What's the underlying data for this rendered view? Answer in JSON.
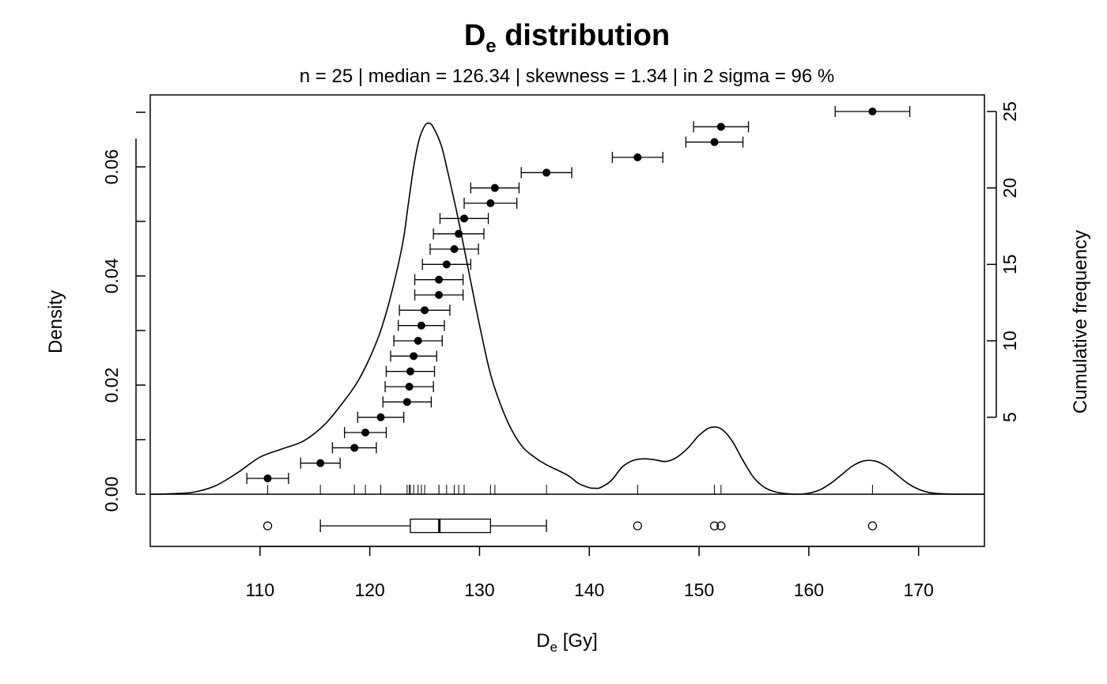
{
  "chart_data": {
    "type": "density-cumulative-boxplot",
    "title_main": "D",
    "title_sub": "e",
    "title_rest": " distribution",
    "subtitle": "n = 25 | median = 126.34 | skewness = 1.34 | in 2 sigma = 96 %",
    "xlabel_main": "D",
    "xlabel_sub": "e",
    "xlabel_rest": " [Gy]",
    "ylabel_left": "Density",
    "ylabel_right": "Cumulative frequency",
    "xlim": [
      100,
      176
    ],
    "ylim_density": [
      0,
      0.07
    ],
    "ylim_cumulative": [
      0,
      25
    ],
    "x_ticks": [
      110,
      120,
      130,
      140,
      150,
      160,
      170
    ],
    "y_left_ticks": [
      "0.00",
      "0.02",
      "0.04",
      "0.06"
    ],
    "y_right_ticks": [
      5,
      10,
      15,
      20,
      25
    ],
    "points": [
      {
        "x": 110.7,
        "err": 1.9
      },
      {
        "x": 115.5,
        "err": 1.8
      },
      {
        "x": 118.6,
        "err": 2.0
      },
      {
        "x": 119.6,
        "err": 1.9
      },
      {
        "x": 121.0,
        "err": 2.1
      },
      {
        "x": 123.4,
        "err": 2.2
      },
      {
        "x": 123.6,
        "err": 2.2
      },
      {
        "x": 123.7,
        "err": 2.2
      },
      {
        "x": 124.0,
        "err": 2.1
      },
      {
        "x": 124.4,
        "err": 2.2
      },
      {
        "x": 124.7,
        "err": 2.1
      },
      {
        "x": 125.0,
        "err": 2.3
      },
      {
        "x": 126.3,
        "err": 2.2
      },
      {
        "x": 126.3,
        "err": 2.2
      },
      {
        "x": 127.0,
        "err": 2.2
      },
      {
        "x": 127.7,
        "err": 2.2
      },
      {
        "x": 128.1,
        "err": 2.3
      },
      {
        "x": 128.6,
        "err": 2.2
      },
      {
        "x": 131.0,
        "err": 2.4
      },
      {
        "x": 131.4,
        "err": 2.2
      },
      {
        "x": 136.1,
        "err": 2.3
      },
      {
        "x": 144.4,
        "err": 2.3
      },
      {
        "x": 151.4,
        "err": 2.6
      },
      {
        "x": 152.0,
        "err": 2.5
      },
      {
        "x": 165.8,
        "err": 3.4
      }
    ],
    "density_curve": [
      [
        100,
        0.0
      ],
      [
        102,
        0.0001
      ],
      [
        104,
        0.0004
      ],
      [
        106,
        0.0016
      ],
      [
        108,
        0.004
      ],
      [
        110,
        0.0068
      ],
      [
        112,
        0.0083
      ],
      [
        114,
        0.0098
      ],
      [
        116,
        0.013
      ],
      [
        118,
        0.018
      ],
      [
        119,
        0.021
      ],
      [
        120,
        0.025
      ],
      [
        121,
        0.03
      ],
      [
        122,
        0.037
      ],
      [
        123,
        0.046
      ],
      [
        123.5,
        0.053
      ],
      [
        124,
        0.06
      ],
      [
        124.5,
        0.065
      ],
      [
        125,
        0.0675
      ],
      [
        125.4,
        0.068
      ],
      [
        125.8,
        0.0672
      ],
      [
        126.5,
        0.064
      ],
      [
        127,
        0.06
      ],
      [
        128,
        0.051
      ],
      [
        129,
        0.041
      ],
      [
        130,
        0.031
      ],
      [
        131,
        0.022
      ],
      [
        132,
        0.016
      ],
      [
        133,
        0.0115
      ],
      [
        134,
        0.0085
      ],
      [
        135,
        0.0068
      ],
      [
        136,
        0.0055
      ],
      [
        138,
        0.0035
      ],
      [
        139,
        0.002
      ],
      [
        140,
        0.0012
      ],
      [
        140.5,
        0.0011
      ],
      [
        141,
        0.0012
      ],
      [
        142,
        0.0025
      ],
      [
        143,
        0.005
      ],
      [
        144,
        0.0062
      ],
      [
        145,
        0.0065
      ],
      [
        146,
        0.0063
      ],
      [
        147,
        0.006
      ],
      [
        148,
        0.0068
      ],
      [
        149,
        0.0085
      ],
      [
        150,
        0.0108
      ],
      [
        151,
        0.0122
      ],
      [
        152,
        0.012
      ],
      [
        153,
        0.0098
      ],
      [
        154,
        0.0062
      ],
      [
        155,
        0.003
      ],
      [
        156,
        0.0012
      ],
      [
        157,
        0.0004
      ],
      [
        158,
        0.0001
      ],
      [
        159,
        0.0
      ],
      [
        160,
        0.0002
      ],
      [
        161,
        0.0008
      ],
      [
        162,
        0.002
      ],
      [
        163,
        0.0036
      ],
      [
        164,
        0.0052
      ],
      [
        165,
        0.0061
      ],
      [
        166,
        0.0061
      ],
      [
        167,
        0.0052
      ],
      [
        168,
        0.0036
      ],
      [
        169,
        0.002
      ],
      [
        170,
        0.0009
      ],
      [
        171,
        0.0003
      ],
      [
        172,
        0.0001
      ],
      [
        174,
        0.0
      ],
      [
        176,
        0.0
      ]
    ],
    "rug": [
      110.7,
      115.5,
      118.6,
      119.6,
      121.0,
      123.4,
      123.6,
      123.7,
      124.0,
      124.4,
      124.7,
      125.0,
      126.3,
      126.3,
      127.0,
      127.7,
      128.1,
      128.6,
      131.0,
      131.4,
      136.1,
      144.4,
      151.4,
      152.0,
      165.8
    ],
    "boxplot": {
      "whisker_low": 115.5,
      "q1": 123.7,
      "median": 126.34,
      "q3": 131.0,
      "whisker_high": 136.1,
      "outliers": [
        110.7,
        144.4,
        151.4,
        152.0,
        165.8
      ]
    }
  }
}
